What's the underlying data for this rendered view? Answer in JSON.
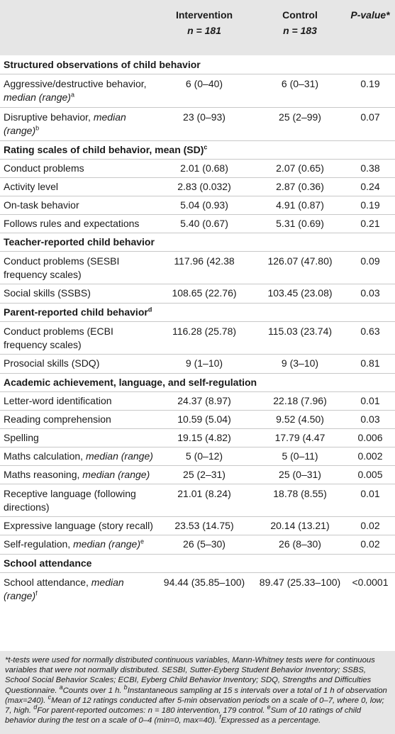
{
  "header": {
    "col2": "Intervention",
    "col2_n": "n = 181",
    "col3": "Control",
    "col3_n": "n = 183",
    "col4": "P-value*"
  },
  "sections": {
    "s1": "Structured observations of child behavior",
    "s2": "Rating scales of child behavior, mean (SD)",
    "s2_sup": "c",
    "s3": "Teacher-reported child behavior",
    "s4": "Parent-reported child behavior",
    "s4_sup": "d",
    "s5": "Academic achievement, language, and self-regulation",
    "s6": "School attendance"
  },
  "rows": {
    "r1": {
      "a": "Aggressive/destructive behavior,",
      "b": "median (range)",
      "sup": "a",
      "v1": "6 (0–40)",
      "v2": "6 (0–31)",
      "p": "0.19"
    },
    "r2": {
      "a": "Disruptive behavior,",
      "b": "median",
      "c": "(range)",
      "sup": "b",
      "v1": "23 (0–93)",
      "v2": "25 (2–99)",
      "p": "0.07"
    },
    "r3": {
      "a": "Conduct problems",
      "v1": "2.01 (0.68)",
      "v2": "2.07 (0.65)",
      "p": "0.38"
    },
    "r4": {
      "a": "Activity level",
      "v1": "2.83 (0.032)",
      "v2": "2.87 (0.36)",
      "p": "0.24"
    },
    "r5": {
      "a": "On-task behavior",
      "v1": "5.04 (0.93)",
      "v2": "4.91 (0.87)",
      "p": "0.19"
    },
    "r6": {
      "a": "Follows rules and expectations",
      "v1": "5.40 (0.67)",
      "v2": "5.31 (0.69)",
      "p": "0.21"
    },
    "r7": {
      "a": "Conduct problems (SESBI",
      "b": "frequency scales)",
      "v1": "117.96 (42.38",
      "v2": "126.07 (47.80)",
      "p": "0.09"
    },
    "r8": {
      "a": "Social skills (SSBS)",
      "v1": "108.65 (22.76)",
      "v2": "103.45 (23.08)",
      "p": "0.03"
    },
    "r9": {
      "a": "Conduct problems (ECBI",
      "b": "frequency scales)",
      "v1": "116.28 (25.78)",
      "v2": "115.03 (23.74)",
      "p": "0.63"
    },
    "r10": {
      "a": "Prosocial skills (SDQ)",
      "v1": "9 (1–10)",
      "v2": "9 (3–10)",
      "p": "0.81"
    },
    "r11": {
      "a": "Letter-word identification",
      "v1": "24.37 (8.97)",
      "v2": "22.18 (7.96)",
      "p": "0.01"
    },
    "r12": {
      "a": "Reading comprehension",
      "v1": "10.59 (5.04)",
      "v2": "9.52 (4.50)",
      "p": "0.03"
    },
    "r13": {
      "a": "Spelling",
      "v1": "19.15 (4.82)",
      "v2": "17.79 (4.47",
      "p": "0.006"
    },
    "r14": {
      "a": "Maths calculation,",
      "b": "median (range)",
      "v1": "5 (0–12)",
      "v2": "5 (0–11)",
      "p": "0.002"
    },
    "r15": {
      "a": "Maths reasoning,",
      "b": "median (range)",
      "v1": "25 (2–31)",
      "v2": "25 (0–31)",
      "p": "0.005"
    },
    "r16": {
      "a": "Receptive language (following",
      "b": "directions)",
      "v1": "21.01 (8.24)",
      "v2": "18.78 (8.55)",
      "p": "0.01"
    },
    "r17": {
      "a": "Expressive language (story recall)",
      "v1": "23.53 (14.75)",
      "v2": "20.14 (13.21)",
      "p": "0.02"
    },
    "r18": {
      "a": "Self-regulation,",
      "b": "median (range)",
      "sup": "e",
      "v1": "26 (5–30)",
      "v2": "26 (8–30)",
      "p": "0.02"
    },
    "r19": {
      "a": "School attendance,",
      "b": "median",
      "c": "(range)",
      "sup": "f",
      "v1": "94.44 (35.85–100)",
      "v2": "89.47 (25.33–100)",
      "p": "<0.0001"
    }
  },
  "footnote": {
    "main": "*t-tests were used for normally distributed continuous variables, Mann-Whitney tests were for continuous variables that were not normally distributed. SESBI, Sutter-Eyberg Student Behavior Inventory; SSBS, School Social Behavior Scales; ECBI, Eyberg Child Behavior Inventory; SDQ, Strengths and Difficulties Questionnaire.",
    "a_sup": "a",
    "a": "Counts over 1 h.",
    "b_sup": "b",
    "b": "Instantaneous sampling at 15 s intervals over a total of 1 h of observation (max=240).",
    "c_sup": "c",
    "c": "Mean of 12 ratings conducted after 5-min observation periods on a scale of 0–7, where 0, low; 7, high.",
    "d_sup": "d",
    "d": "For parent-reported outcomes: n = 180 intervention, 179 control.",
    "e_sup": "e",
    "e": "Sum of 10 ratings of child behavior during the test on a scale of 0–4 (min=0, max=40).",
    "f_sup": "f",
    "f": "Expressed as a percentage."
  }
}
